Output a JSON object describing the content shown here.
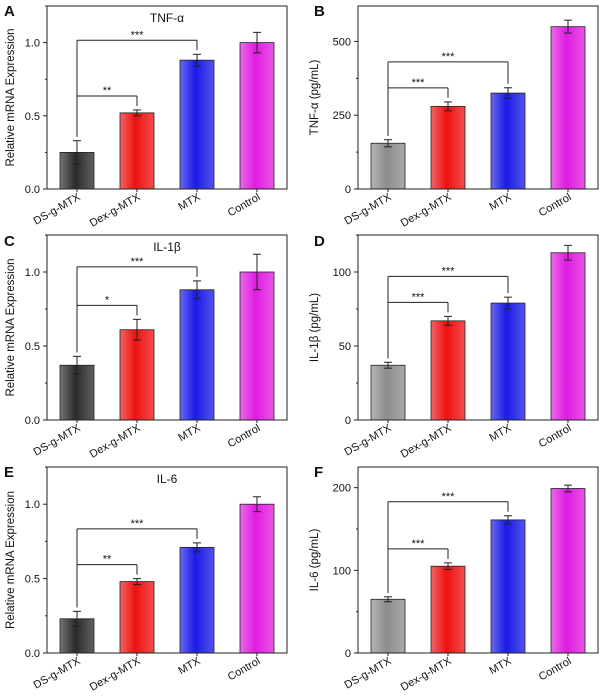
{
  "figure": {
    "colors": {
      "DS-g-MTX-mrna": "#2b2b2b",
      "DS-g-MTX-protein": "#8c8c8c",
      "Dex-g-MTX": "#ee1111",
      "MTX": "#1a1ae6",
      "Control": "#e01ce0"
    }
  },
  "chart_data": [
    {
      "panel": "A",
      "type": "bar",
      "title": "TNF-α",
      "ylabel": "Relative mRNA Expression",
      "xlabel": "",
      "categories": [
        "DS-g-MTX",
        "Dex-g-MTX",
        "MTX",
        "Control"
      ],
      "values": [
        0.25,
        0.52,
        0.88,
        1.0
      ],
      "errors": [
        0.08,
        0.02,
        0.04,
        0.07
      ],
      "ylim": [
        0,
        1.25
      ],
      "yticks": [
        0.0,
        0.5,
        1.0
      ],
      "ytick_labels": [
        "0.0",
        "0.5",
        "1.0"
      ],
      "significance": [
        {
          "from": 0,
          "to": 1,
          "label": "**"
        },
        {
          "from": 0,
          "to": 2,
          "label": "***"
        }
      ]
    },
    {
      "panel": "B",
      "type": "bar",
      "title": "",
      "ylabel": "TNF-α (pg/mL)",
      "xlabel": "",
      "categories": [
        "DS-g-MTX",
        "Dex-g-MTX",
        "MTX",
        "Control"
      ],
      "values": [
        155,
        280,
        325,
        550
      ],
      "errors": [
        12,
        15,
        18,
        22
      ],
      "ylim": [
        0,
        620
      ],
      "yticks": [
        0,
        250,
        500
      ],
      "ytick_labels": [
        "0",
        "250",
        "500"
      ],
      "significance": [
        {
          "from": 0,
          "to": 1,
          "label": "***"
        },
        {
          "from": 0,
          "to": 2,
          "label": "***"
        }
      ]
    },
    {
      "panel": "C",
      "type": "bar",
      "title": "IL-1β",
      "ylabel": "Relative mRNA Expression",
      "xlabel": "",
      "categories": [
        "DS-g-MTX",
        "Dex-g-MTX",
        "MTX",
        "Control"
      ],
      "values": [
        0.37,
        0.61,
        0.88,
        1.0
      ],
      "errors": [
        0.06,
        0.07,
        0.06,
        0.12
      ],
      "ylim": [
        0,
        1.25
      ],
      "yticks": [
        0.0,
        0.5,
        1.0
      ],
      "ytick_labels": [
        "0.0",
        "0.5",
        "1.0"
      ],
      "significance": [
        {
          "from": 0,
          "to": 1,
          "label": "*"
        },
        {
          "from": 0,
          "to": 2,
          "label": "***"
        }
      ]
    },
    {
      "panel": "D",
      "type": "bar",
      "title": "",
      "ylabel": "IL-1β (pg/mL)",
      "xlabel": "",
      "categories": [
        "DS-g-MTX",
        "Dex-g-MTX",
        "MTX",
        "Control"
      ],
      "values": [
        37,
        67,
        79,
        113
      ],
      "errors": [
        2,
        3,
        4,
        5
      ],
      "ylim": [
        0,
        125
      ],
      "yticks": [
        0,
        50,
        100
      ],
      "ytick_labels": [
        "0",
        "50",
        "100"
      ],
      "significance": [
        {
          "from": 0,
          "to": 1,
          "label": "***"
        },
        {
          "from": 0,
          "to": 2,
          "label": "***"
        }
      ]
    },
    {
      "panel": "E",
      "type": "bar",
      "title": "IL-6",
      "ylabel": "Relative mRNA Expression",
      "xlabel": "",
      "categories": [
        "DS-g-MTX",
        "Dex-g-MTX",
        "MTX",
        "Control"
      ],
      "values": [
        0.23,
        0.48,
        0.71,
        1.0
      ],
      "errors": [
        0.05,
        0.02,
        0.03,
        0.05
      ],
      "ylim": [
        0,
        1.25
      ],
      "yticks": [
        0.0,
        0.5,
        1.0
      ],
      "ytick_labels": [
        "0.0",
        "0.5",
        "1.0"
      ],
      "significance": [
        {
          "from": 0,
          "to": 1,
          "label": "**"
        },
        {
          "from": 0,
          "to": 2,
          "label": "***"
        }
      ]
    },
    {
      "panel": "F",
      "type": "bar",
      "title": "",
      "ylabel": "IL-6 (pg/mL)",
      "xlabel": "",
      "categories": [
        "DS-g-MTX",
        "Dex-g-MTX",
        "MTX",
        "Control"
      ],
      "values": [
        65,
        105,
        161,
        199
      ],
      "errors": [
        3,
        4,
        5,
        4
      ],
      "ylim": [
        0,
        225
      ],
      "yticks": [
        0,
        100,
        200
      ],
      "ytick_labels": [
        "0",
        "100",
        "200"
      ],
      "significance": [
        {
          "from": 0,
          "to": 1,
          "label": "***"
        },
        {
          "from": 0,
          "to": 2,
          "label": "***"
        }
      ]
    }
  ]
}
